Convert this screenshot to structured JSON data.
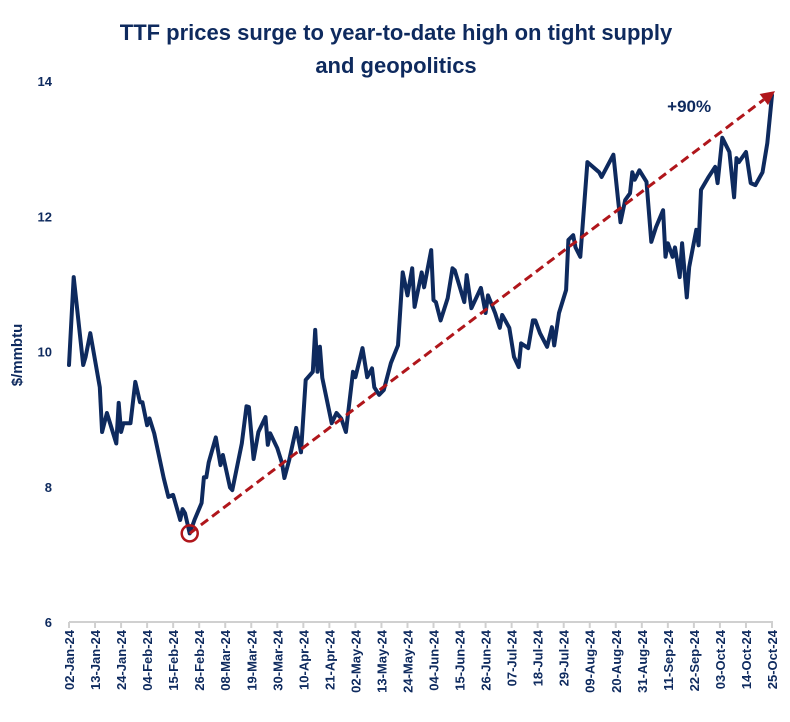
{
  "chart_data": {
    "type": "line",
    "title_lines": [
      "TTF prices surge to year-to-date high on tight supply",
      "and geopolitics"
    ],
    "xlabel": "",
    "ylabel": "$/mmbtu",
    "ylim": [
      6,
      14
    ],
    "yticks": [
      6,
      8,
      10,
      12,
      14
    ],
    "xlim": [
      "2024-01-02",
      "2024-10-25"
    ],
    "xtick_labels": [
      "02-Jan-24",
      "13-Jan-24",
      "24-Jan-24",
      "04-Feb-24",
      "15-Feb-24",
      "26-Feb-24",
      "08-Mar-24",
      "19-Mar-24",
      "30-Mar-24",
      "10-Apr-24",
      "21-Apr-24",
      "02-May-24",
      "13-May-24",
      "24-May-24",
      "04-Jun-24",
      "15-Jun-24",
      "26-Jun-24",
      "07-Jul-24",
      "18-Jul-24",
      "29-Jul-24",
      "09-Aug-24",
      "20-Aug-24",
      "31-Aug-24",
      "11-Sep-24",
      "22-Sep-24",
      "03-Oct-24",
      "14-Oct-24",
      "25-Oct-24"
    ],
    "grid": false,
    "line_color": "#0e2a5e",
    "trend_color": "#b0161b",
    "series": [
      {
        "points": [
          [
            "2024-01-02",
            9.8
          ],
          [
            "2024-01-04",
            11.1
          ],
          [
            "2024-01-08",
            9.8
          ],
          [
            "2024-01-09",
            9.92
          ],
          [
            "2024-01-11",
            10.27
          ],
          [
            "2024-01-15",
            9.47
          ],
          [
            "2024-01-16",
            8.81
          ],
          [
            "2024-01-18",
            9.09
          ],
          [
            "2024-01-22",
            8.64
          ],
          [
            "2024-01-23",
            9.24
          ],
          [
            "2024-01-24",
            8.81
          ],
          [
            "2024-01-25",
            8.94
          ],
          [
            "2024-01-28",
            8.94
          ],
          [
            "2024-01-30",
            9.55
          ],
          [
            "2024-02-01",
            9.25
          ],
          [
            "2024-02-02",
            9.25
          ],
          [
            "2024-02-04",
            8.91
          ],
          [
            "2024-02-05",
            9.01
          ],
          [
            "2024-02-07",
            8.79
          ],
          [
            "2024-02-11",
            8.13
          ],
          [
            "2024-02-13",
            7.85
          ],
          [
            "2024-02-15",
            7.88
          ],
          [
            "2024-02-18",
            7.51
          ],
          [
            "2024-02-19",
            7.67
          ],
          [
            "2024-02-20",
            7.61
          ],
          [
            "2024-02-22",
            7.31
          ],
          [
            "2024-02-24",
            7.51
          ],
          [
            "2024-02-27",
            7.76
          ],
          [
            "2024-02-28",
            8.14
          ],
          [
            "2024-02-29",
            8.14
          ],
          [
            "2024-03-01",
            8.36
          ],
          [
            "2024-03-04",
            8.73
          ],
          [
            "2024-03-06",
            8.32
          ],
          [
            "2024-03-07",
            8.47
          ],
          [
            "2024-03-10",
            7.99
          ],
          [
            "2024-03-11",
            7.95
          ],
          [
            "2024-03-15",
            8.64
          ],
          [
            "2024-03-17",
            9.19
          ],
          [
            "2024-03-18",
            9.18
          ],
          [
            "2024-03-20",
            8.41
          ],
          [
            "2024-03-22",
            8.81
          ],
          [
            "2024-03-25",
            9.03
          ],
          [
            "2024-03-26",
            8.62
          ],
          [
            "2024-03-27",
            8.79
          ],
          [
            "2024-03-30",
            8.57
          ],
          [
            "2024-04-01",
            8.35
          ],
          [
            "2024-04-02",
            8.13
          ],
          [
            "2024-04-04",
            8.39
          ],
          [
            "2024-04-07",
            8.87
          ],
          [
            "2024-04-09",
            8.51
          ],
          [
            "2024-04-11",
            9.58
          ],
          [
            "2024-04-14",
            9.7
          ],
          [
            "2024-04-15",
            10.32
          ],
          [
            "2024-04-16",
            9.7
          ],
          [
            "2024-04-17",
            10.07
          ],
          [
            "2024-04-18",
            9.61
          ],
          [
            "2024-04-22",
            8.94
          ],
          [
            "2024-04-24",
            9.09
          ],
          [
            "2024-04-26",
            9.01
          ],
          [
            "2024-04-28",
            8.81
          ],
          [
            "2024-05-01",
            9.7
          ],
          [
            "2024-05-02",
            9.62
          ],
          [
            "2024-05-05",
            10.05
          ],
          [
            "2024-05-07",
            9.62
          ],
          [
            "2024-05-09",
            9.75
          ],
          [
            "2024-05-10",
            9.47
          ],
          [
            "2024-05-12",
            9.36
          ],
          [
            "2024-05-14",
            9.43
          ],
          [
            "2024-05-17",
            9.83
          ],
          [
            "2024-05-20",
            10.09
          ],
          [
            "2024-05-22",
            11.17
          ],
          [
            "2024-05-24",
            10.83
          ],
          [
            "2024-05-26",
            11.23
          ],
          [
            "2024-05-27",
            10.66
          ],
          [
            "2024-05-30",
            11.17
          ],
          [
            "2024-05-31",
            10.95
          ],
          [
            "2024-06-03",
            11.5
          ],
          [
            "2024-06-04",
            10.76
          ],
          [
            "2024-06-05",
            10.73
          ],
          [
            "2024-06-07",
            10.46
          ],
          [
            "2024-06-10",
            10.79
          ],
          [
            "2024-06-12",
            11.23
          ],
          [
            "2024-06-13",
            11.2
          ],
          [
            "2024-06-17",
            10.73
          ],
          [
            "2024-06-18",
            11.13
          ],
          [
            "2024-06-20",
            10.64
          ],
          [
            "2024-06-24",
            10.94
          ],
          [
            "2024-06-26",
            10.57
          ],
          [
            "2024-06-27",
            10.83
          ],
          [
            "2024-06-30",
            10.57
          ],
          [
            "2024-07-02",
            10.35
          ],
          [
            "2024-07-03",
            10.54
          ],
          [
            "2024-07-06",
            10.35
          ],
          [
            "2024-07-08",
            9.92
          ],
          [
            "2024-07-10",
            9.77
          ],
          [
            "2024-07-11",
            10.12
          ],
          [
            "2024-07-14",
            10.05
          ],
          [
            "2024-07-16",
            10.46
          ],
          [
            "2024-07-17",
            10.46
          ],
          [
            "2024-07-19",
            10.27
          ],
          [
            "2024-07-22",
            10.07
          ],
          [
            "2024-07-24",
            10.36
          ],
          [
            "2024-07-25",
            10.09
          ],
          [
            "2024-07-27",
            10.57
          ],
          [
            "2024-07-30",
            10.91
          ],
          [
            "2024-07-31",
            11.65
          ],
          [
            "2024-08-02",
            11.72
          ],
          [
            "2024-08-03",
            11.54
          ],
          [
            "2024-08-05",
            11.4
          ],
          [
            "2024-08-08",
            12.8
          ],
          [
            "2024-08-13",
            12.65
          ],
          [
            "2024-08-14",
            12.58
          ],
          [
            "2024-08-19",
            12.91
          ],
          [
            "2024-08-21",
            12.24
          ],
          [
            "2024-08-22",
            11.91
          ],
          [
            "2024-08-24",
            12.24
          ],
          [
            "2024-08-26",
            12.34
          ],
          [
            "2024-08-27",
            12.65
          ],
          [
            "2024-08-28",
            12.54
          ],
          [
            "2024-08-30",
            12.68
          ],
          [
            "2024-09-02",
            12.51
          ],
          [
            "2024-09-04",
            11.62
          ],
          [
            "2024-09-06",
            11.84
          ],
          [
            "2024-09-09",
            12.09
          ],
          [
            "2024-09-10",
            11.4
          ],
          [
            "2024-09-11",
            11.6
          ],
          [
            "2024-09-13",
            11.4
          ],
          [
            "2024-09-14",
            11.54
          ],
          [
            "2024-09-16",
            11.1
          ],
          [
            "2024-09-17",
            11.6
          ],
          [
            "2024-09-19",
            10.8
          ],
          [
            "2024-09-20",
            11.25
          ],
          [
            "2024-09-23",
            11.8
          ],
          [
            "2024-09-24",
            11.57
          ],
          [
            "2024-09-25",
            12.39
          ],
          [
            "2024-09-28",
            12.57
          ],
          [
            "2024-10-01",
            12.73
          ],
          [
            "2024-10-02",
            12.49
          ],
          [
            "2024-10-04",
            13.16
          ],
          [
            "2024-10-07",
            12.95
          ],
          [
            "2024-10-09",
            12.28
          ],
          [
            "2024-10-10",
            12.86
          ],
          [
            "2024-10-11",
            12.8
          ],
          [
            "2024-10-14",
            12.95
          ],
          [
            "2024-10-16",
            12.49
          ],
          [
            "2024-10-18",
            12.46
          ],
          [
            "2024-10-21",
            12.65
          ],
          [
            "2024-10-23",
            13.08
          ],
          [
            "2024-10-25",
            13.79
          ]
        ]
      }
    ],
    "trend_arrow": {
      "from": [
        "2024-02-22",
        7.31
      ],
      "to": [
        "2024-10-25",
        13.85
      ]
    },
    "low_marker": [
      "2024-02-22",
      7.31
    ],
    "annotations": [
      {
        "text": "+90%",
        "at": [
          "2024-09-20",
          13.54
        ]
      }
    ]
  }
}
